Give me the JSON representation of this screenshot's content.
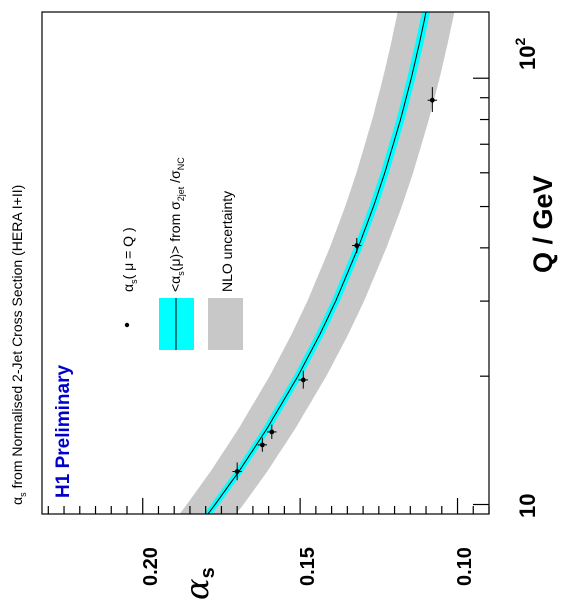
{
  "chart_data": {
    "type": "scatter",
    "title": "αs from Normalised 2-Jet Cross Section (HERA I+II)",
    "badge": "H1 Preliminary",
    "xlabel": "Q / GeV",
    "ylabel": "αs",
    "x_scale": "log",
    "xlim": [
      9.5,
      143
    ],
    "ylim": [
      0.09,
      0.232
    ],
    "x_tick_labels": [
      "10",
      "10²"
    ],
    "y_tick_labels": [
      "0.20",
      "0.15",
      "0.10"
    ],
    "legend": {
      "placement": "top-right",
      "entries": [
        {
          "key": "points",
          "label": "αs( μ = Q )"
        },
        {
          "key": "fit",
          "label": "<αs(μ)> from σ2jet / σNC"
        },
        {
          "key": "band",
          "label": "NLO uncertainty"
        }
      ]
    },
    "colors": {
      "fit_band": "#00ffff",
      "nlo_band": "#c8c8c8",
      "curve": "#000000",
      "badge": "#0000cc"
    },
    "points": [
      {
        "x": 11.95,
        "y": 0.17,
        "xerr": [
          0.55,
          0.6
        ],
        "yerr": 0.0015
      },
      {
        "x": 13.8,
        "y": 0.162,
        "xerr": [
          0.5,
          0.55
        ],
        "yerr": 0.0015
      },
      {
        "x": 14.8,
        "y": 0.159,
        "xerr": [
          0.55,
          0.6
        ],
        "yerr": 0.0015
      },
      {
        "x": 19.6,
        "y": 0.149,
        "xerr": [
          0.9,
          1.0
        ],
        "yerr": 0.0015
      },
      {
        "x": 40.5,
        "y": 0.132,
        "xerr": [
          1.6,
          1.7
        ],
        "yerr": 0.0015
      },
      {
        "x": 88.8,
        "y": 0.108,
        "xerr": [
          5.5,
          6.5
        ],
        "yerr": 0.0015
      }
    ],
    "fit_curve": [
      {
        "x": 9.5,
        "y": 0.1793
      },
      {
        "x": 10,
        "y": 0.177
      },
      {
        "x": 12,
        "y": 0.1693
      },
      {
        "x": 15,
        "y": 0.1607
      },
      {
        "x": 20,
        "y": 0.1507
      },
      {
        "x": 25,
        "y": 0.1438
      },
      {
        "x": 30,
        "y": 0.1387
      },
      {
        "x": 40,
        "y": 0.1316
      },
      {
        "x": 50,
        "y": 0.1267
      },
      {
        "x": 60,
        "y": 0.1231
      },
      {
        "x": 80,
        "y": 0.1181
      },
      {
        "x": 100,
        "y": 0.1147
      },
      {
        "x": 120,
        "y": 0.1122
      },
      {
        "x": 143,
        "y": 0.11
      }
    ],
    "fit_band_halfwidth": 0.0013,
    "nlo_band_halfwidth": 0.009
  }
}
